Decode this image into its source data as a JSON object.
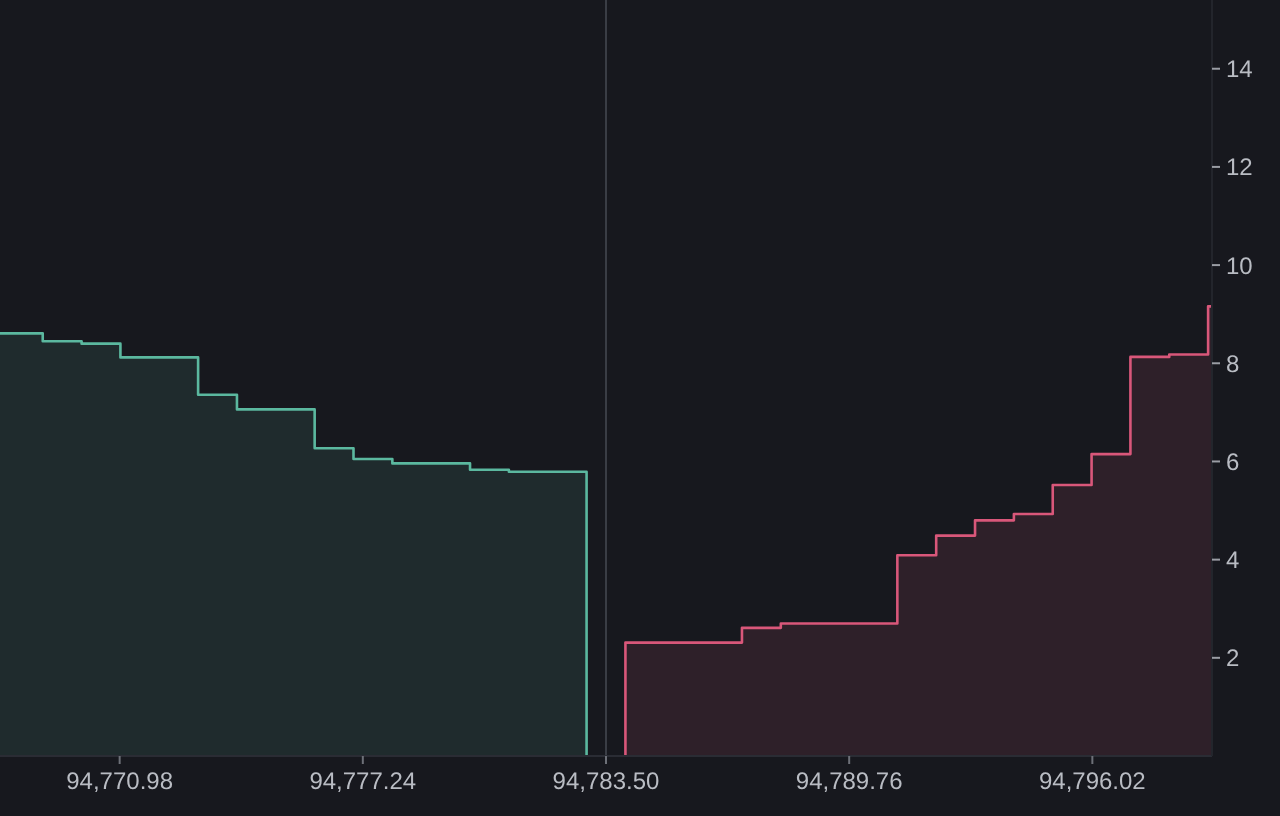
{
  "chart_data": {
    "type": "step",
    "series": [
      {
        "color": "#5bb89f",
        "x": [
          94767.9,
          94769.0,
          94770.0,
          94771.0,
          94773.0,
          94774.0,
          94776.0,
          94777.0,
          94778.0,
          94780.0,
          94781.0,
          94783.0
        ],
        "values": [
          8.61,
          8.45,
          8.4,
          8.12,
          7.36,
          7.06,
          6.27,
          6.05,
          5.96,
          5.83,
          5.79,
          0
        ]
      },
      {
        "color": "#d9577a",
        "x": [
          94784.0,
          94784.0,
          94787.0,
          94788.0,
          94791.0,
          94792.0,
          94793.0,
          94794.0,
          94795.0,
          94796.0,
          94797.0,
          94798.0,
          94799.0,
          94799.1
        ],
        "values": [
          0,
          2.31,
          2.61,
          2.7,
          4.09,
          4.49,
          4.8,
          4.93,
          5.52,
          6.15,
          8.13,
          8.18,
          9.16,
          9.16
        ]
      }
    ],
    "xlim": [
      94767.9,
      94799.1
    ],
    "xticks": [
      {
        "value": 94770.98,
        "label": "94,770.98"
      },
      {
        "value": 94777.24,
        "label": "94,777.24"
      },
      {
        "value": 94783.5,
        "label": "94,783.50"
      },
      {
        "value": 94789.76,
        "label": "94,789.76"
      },
      {
        "value": 94796.02,
        "label": "94,796.02"
      }
    ],
    "ylim": [
      0,
      15.4
    ],
    "yticks": [
      2,
      4,
      6,
      8,
      10,
      12,
      14
    ],
    "ref_lines": [
      {
        "axis": "x",
        "value": 94783.5,
        "color": "#3a3d45"
      }
    ]
  }
}
